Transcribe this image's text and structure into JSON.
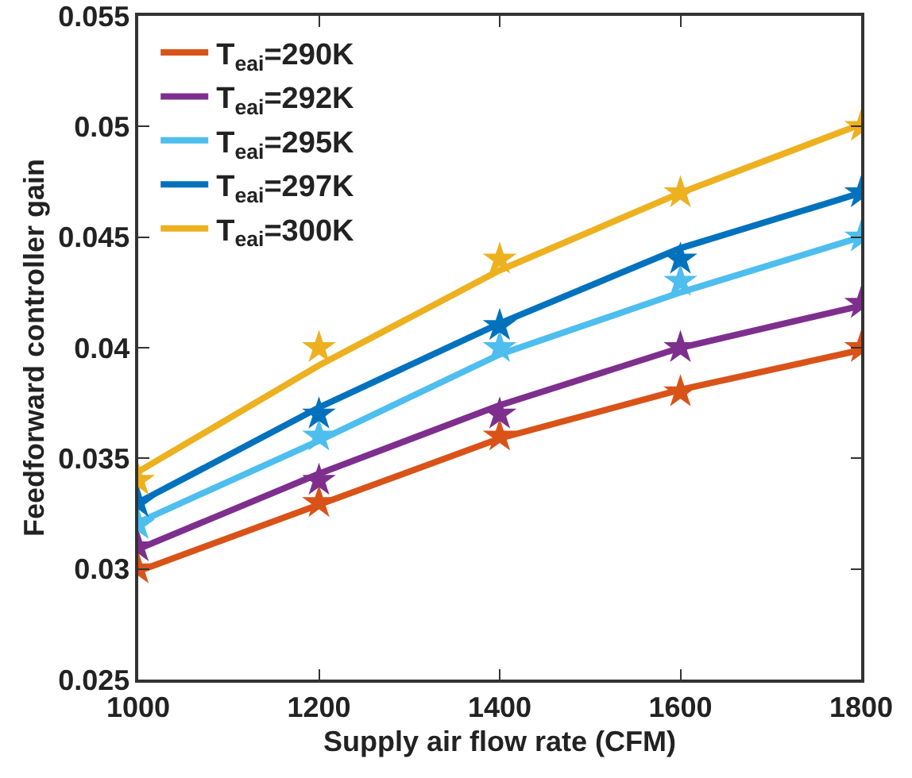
{
  "chart_data": {
    "type": "line",
    "xlabel": "Supply air flow rate (CFM)",
    "ylabel": "Feedforward controller gain",
    "x": [
      1000,
      1200,
      1400,
      1600,
      1800
    ],
    "xlim": [
      1000,
      1800
    ],
    "xticks": [
      1000,
      1200,
      1400,
      1600,
      1800
    ],
    "ylim": [
      0.025,
      0.055
    ],
    "yticks": [
      0.025,
      0.03,
      0.035,
      0.04,
      0.045,
      0.05,
      0.055
    ],
    "grid": false,
    "legend": "top left",
    "line_style": "solid",
    "series": [
      {
        "name": "T$_{eai}$=290K",
        "color": "#d95319",
        "marker": "none",
        "values": [
          0.0299,
          0.0329,
          0.0359,
          0.0381,
          0.0399
        ]
      },
      {
        "name": "T$_{eai}$=292K",
        "color": "#7e2f8e",
        "marker": "none",
        "values": [
          0.0309,
          0.0343,
          0.0374,
          0.04,
          0.0419
        ]
      },
      {
        "name": "T$_{eai}$=295K",
        "color": "#4dbeee",
        "marker": "none",
        "values": [
          0.0321,
          0.0358,
          0.0397,
          0.0425,
          0.045
        ]
      },
      {
        "name": "T$_{eai}$=297K",
        "color": "#0072bd",
        "marker": "none",
        "values": [
          0.033,
          0.0373,
          0.0411,
          0.0445,
          0.047
        ]
      },
      {
        "name": "T$_{eai}$=300K",
        "color": "#edb120",
        "marker": "none",
        "values": [
          0.0344,
          0.0392,
          0.0435,
          0.047,
          0.0501
        ]
      },
      {
        "type": "scatter",
        "color": "#d95319",
        "marker": "star",
        "values": [
          0.03,
          0.033,
          0.036,
          0.038,
          0.04
        ]
      },
      {
        "type": "scatter",
        "color": "#7e2f8e",
        "marker": "star",
        "values": [
          0.031,
          0.034,
          0.037,
          0.04,
          0.042
        ]
      },
      {
        "type": "scatter",
        "color": "#4dbeee",
        "marker": "star",
        "values": [
          0.032,
          0.036,
          0.04,
          0.043,
          0.045
        ]
      },
      {
        "type": "scatter",
        "color": "#0072bd",
        "marker": "star",
        "values": [
          0.033,
          0.037,
          0.041,
          0.044,
          0.047
        ]
      },
      {
        "type": "scatter",
        "color": "#edb120",
        "marker": "star",
        "values": [
          0.034,
          0.04,
          0.044,
          0.047,
          0.05
        ]
      }
    ]
  }
}
